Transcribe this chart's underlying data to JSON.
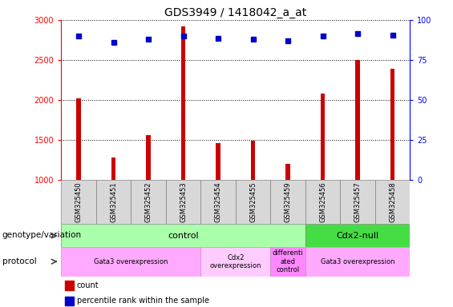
{
  "title": "GDS3949 / 1418042_a_at",
  "samples": [
    "GSM325450",
    "GSM325451",
    "GSM325452",
    "GSM325453",
    "GSM325454",
    "GSM325455",
    "GSM325459",
    "GSM325456",
    "GSM325457",
    "GSM325458"
  ],
  "counts": [
    2020,
    1280,
    1560,
    2920,
    1460,
    1490,
    1200,
    2080,
    2500,
    2390
  ],
  "percentile_ranks": [
    2800,
    2720,
    2760,
    2800,
    2770,
    2760,
    2740,
    2800,
    2830,
    2810
  ],
  "ylim_left": [
    1000,
    3000
  ],
  "ylim_right": [
    0,
    100
  ],
  "yticks_left": [
    1000,
    1500,
    2000,
    2500,
    3000
  ],
  "yticks_right": [
    0,
    25,
    50,
    75,
    100
  ],
  "bar_color": "#cc0000",
  "dot_color": "#0000cc",
  "genotype_groups": [
    {
      "label": "control",
      "start": 0,
      "end": 7,
      "color": "#aaffaa"
    },
    {
      "label": "Cdx2-null",
      "start": 7,
      "end": 10,
      "color": "#44dd44"
    }
  ],
  "protocol_groups": [
    {
      "label": "Gata3 overexpression",
      "start": 0,
      "end": 4,
      "color": "#ffaaff"
    },
    {
      "label": "Cdx2\noverexpression",
      "start": 4,
      "end": 6,
      "color": "#ffccff"
    },
    {
      "label": "differenti\nated\ncontrol",
      "start": 6,
      "end": 7,
      "color": "#ff88ff"
    },
    {
      "label": "Gata3 overexpression",
      "start": 7,
      "end": 10,
      "color": "#ffaaff"
    }
  ],
  "title_fontsize": 10,
  "tick_fontsize": 7,
  "sample_fontsize": 6,
  "legend_fontsize": 7,
  "annot_fontsize": 7.5,
  "bar_width": 0.12
}
